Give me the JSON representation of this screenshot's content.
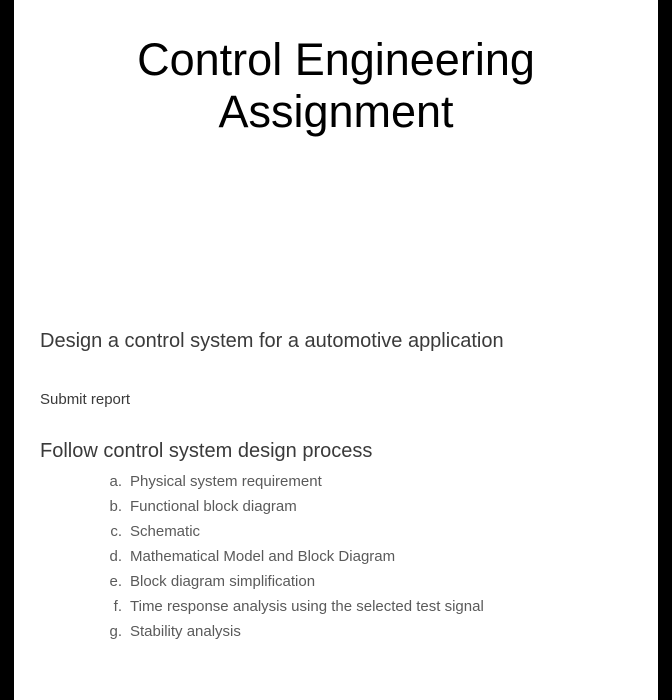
{
  "title_line1": "Control Engineering",
  "title_line2": "Assignment",
  "task": "Design a control system for a automotive application",
  "submit": "Submit report",
  "follow": "Follow control system design process",
  "steps": [
    {
      "letter": "a.",
      "text": "Physical system requirement"
    },
    {
      "letter": "b.",
      "text": "Functional block diagram"
    },
    {
      "letter": "c.",
      "text": "Schematic"
    },
    {
      "letter": "d.",
      "text": "Mathematical Model and Block Diagram"
    },
    {
      "letter": "e.",
      "text": "Block diagram simplification"
    },
    {
      "letter": "f.",
      "text": "Time response analysis using the selected test signal"
    },
    {
      "letter": "g.",
      "text": "Stability analysis"
    }
  ],
  "colors": {
    "page_bg": "#ffffff",
    "frame_bg": "#000000",
    "title_color": "#000000",
    "body_color": "#3a3a3a",
    "list_color": "#5a5a5a"
  }
}
